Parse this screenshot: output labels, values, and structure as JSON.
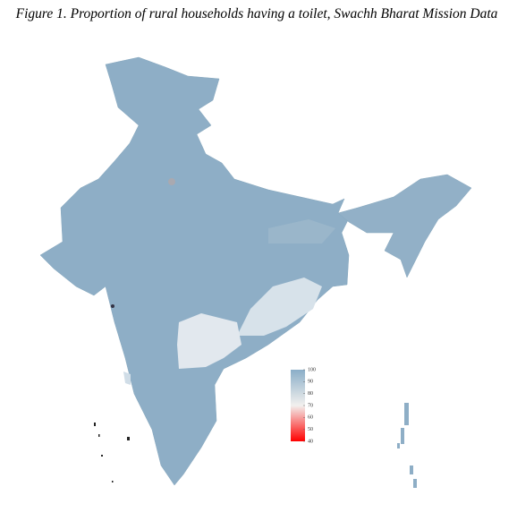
{
  "title": "Figure 1. Proportion of rural households having a toilet, Swachh Bharat Mission Data",
  "legend": {
    "range": [
      40,
      100
    ],
    "ticks": [
      100,
      90,
      80,
      70,
      60,
      50,
      40
    ],
    "colors": [
      "#ff0000",
      "#f2f0ee",
      "#8aaec8"
    ]
  }
}
